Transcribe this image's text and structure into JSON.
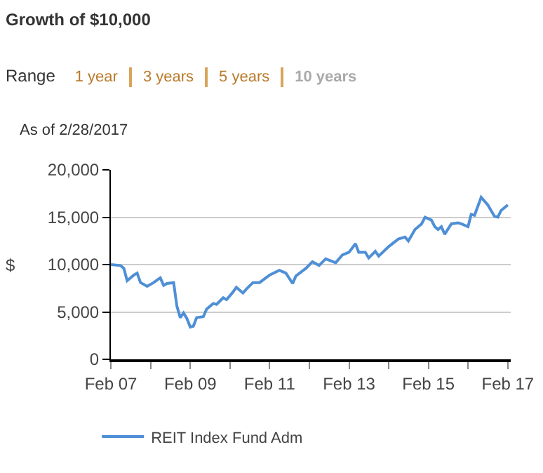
{
  "chart_data": {
    "type": "line",
    "title": "Growth of $10,000",
    "subtitle": "As of 2/28/2017",
    "annotations": [
      "Range",
      "1 year",
      "3 years",
      "5 years",
      "10 years"
    ],
    "ylabel": "$",
    "x": [
      "2007-02",
      "2007-05",
      "2007-06",
      "2007-07",
      "2007-09",
      "2007-10",
      "2007-11",
      "2008-01",
      "2008-03",
      "2008-05",
      "2008-06",
      "2008-07",
      "2008-09",
      "2008-10",
      "2008-11",
      "2008-12",
      "2009-01",
      "2009-02",
      "2009-03",
      "2009-04",
      "2009-06",
      "2009-07",
      "2009-09",
      "2009-10",
      "2009-12",
      "2010-01",
      "2010-03",
      "2010-04",
      "2010-06",
      "2010-07",
      "2010-09",
      "2010-11",
      "2011-02",
      "2011-05",
      "2011-07",
      "2011-09",
      "2011-10",
      "2012-01",
      "2012-03",
      "2012-05",
      "2012-07",
      "2012-10",
      "2012-12",
      "2013-02",
      "2013-04",
      "2013-05",
      "2013-07",
      "2013-08",
      "2013-10",
      "2013-11",
      "2014-02",
      "2014-05",
      "2014-07",
      "2014-08",
      "2014-10",
      "2014-12",
      "2015-01",
      "2015-03",
      "2015-04",
      "2015-05",
      "2015-06",
      "2015-07",
      "2015-09",
      "2015-11",
      "2015-12",
      "2016-02",
      "2016-03",
      "2016-04",
      "2016-06",
      "2016-08",
      "2016-10",
      "2016-11",
      "2016-12",
      "2017-02"
    ],
    "series": [
      {
        "name": "REIT Index Fund Adm",
        "color": "#4f8fd6",
        "values": [
          10000,
          9900,
          9600,
          8300,
          8900,
          9100,
          8100,
          7700,
          8100,
          8600,
          7800,
          8000,
          8100,
          5600,
          4400,
          4900,
          4300,
          3400,
          3500,
          4400,
          4500,
          5300,
          5900,
          5800,
          6500,
          6300,
          7100,
          7600,
          7000,
          7400,
          8100,
          8100,
          8900,
          9400,
          9100,
          8000,
          8800,
          9600,
          10300,
          9900,
          10600,
          10200,
          11000,
          11300,
          12200,
          11300,
          11300,
          10700,
          11400,
          10900,
          11900,
          12700,
          12900,
          12500,
          13700,
          14300,
          15000,
          14700,
          14000,
          13700,
          14000,
          13200,
          14300,
          14400,
          14300,
          14000,
          15300,
          15200,
          17100,
          16300,
          15100,
          15000,
          15700,
          16300
        ]
      }
    ],
    "xlim": [
      "2007-02-01",
      "2017-02-28"
    ],
    "xticks": [
      {
        "value": "2007-02-01",
        "label": "Feb 07"
      },
      {
        "value": "2008-02-01",
        "label": null
      },
      {
        "value": "2009-02-01",
        "label": "Feb 09"
      },
      {
        "value": "2010-02-01",
        "label": null
      },
      {
        "value": "2011-02-01",
        "label": "Feb 11"
      },
      {
        "value": "2012-02-01",
        "label": null
      },
      {
        "value": "2013-02-01",
        "label": "Feb 13"
      },
      {
        "value": "2014-02-01",
        "label": null
      },
      {
        "value": "2015-02-01",
        "label": "Feb 15"
      },
      {
        "value": "2016-02-01",
        "label": null
      },
      {
        "value": "2017-02-01",
        "label": "Feb 17"
      }
    ],
    "ylim": [
      0,
      20000
    ],
    "yticks": [
      {
        "value": 0,
        "label": "0"
      },
      {
        "value": 5000,
        "label": "5,000"
      },
      {
        "value": 10000,
        "label": "10,000"
      },
      {
        "value": 15000,
        "label": "15,000"
      },
      {
        "value": 20000,
        "label": "20,000"
      }
    ],
    "grid": "y",
    "legend": "bottom left",
    "marker": "none",
    "line_style": "solid"
  }
}
